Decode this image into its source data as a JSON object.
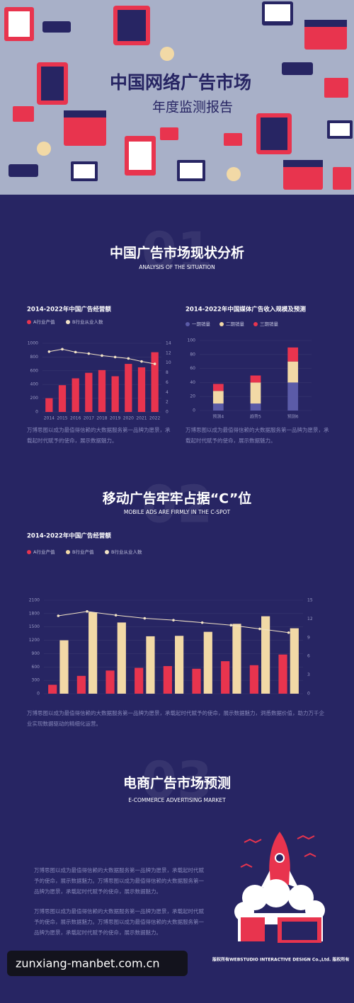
{
  "header": {
    "title": "中国网络广告市场",
    "subtitle": "年度监测报告"
  },
  "sections": [
    {
      "number": "01",
      "title": "中国广告市场现状分析",
      "subtitle": "ANALYSIS OF THE SITUATION"
    },
    {
      "number": "02",
      "title": "移动广告牢牢占据“C”位",
      "subtitle": "MOBILE ADS ARE FIRMLY IN THE C-SPOT"
    },
    {
      "number": "03",
      "title": "电商广告市场预测",
      "subtitle": "E-COMMERCE ADVERTISING MARKET"
    }
  ],
  "chart_data": [
    {
      "type": "bar",
      "title": "2014-2022年中国广告经营额",
      "categories": [
        "2014",
        "2015",
        "2016",
        "2017",
        "2018",
        "2019",
        "2020",
        "2021",
        "2022"
      ],
      "series": [
        {
          "name": "A行业产值",
          "color": "#e8344e",
          "values": [
            200,
            390,
            490,
            570,
            610,
            520,
            700,
            650,
            870
          ]
        },
        {
          "name": "B行业从业人数",
          "color": "#f2e3c6",
          "type": "line",
          "axis": "y2",
          "values": [
            12.3,
            12.8,
            12.2,
            11.9,
            11.5,
            11.2,
            10.9,
            10.3,
            9.8
          ]
        }
      ],
      "ylim": [
        0,
        1000
      ],
      "yticks": [
        0,
        200,
        400,
        600,
        800,
        1000
      ],
      "y2lim": [
        0,
        14
      ],
      "y2ticks": [
        0,
        2,
        4,
        6,
        8,
        10,
        12,
        14
      ],
      "grid": true,
      "caption": "万博思图以成为最值得信赖的大数据服务第一品牌为愿景，承载起时代赋予的使命，展示数据魅力。"
    },
    {
      "type": "bar",
      "stacked": true,
      "title": "2014-2022年中国媒体广告收入规模及预测",
      "categories": [
        "预测4",
        "趋势5",
        "预测6"
      ],
      "series": [
        {
          "name": "一期销量",
          "color": "#5b5ba8",
          "values": [
            10,
            10,
            40
          ]
        },
        {
          "name": "二期销量",
          "color": "#f2d9a6",
          "values": [
            18,
            30,
            30
          ]
        },
        {
          "name": "三期销量",
          "color": "#e8344e",
          "values": [
            10,
            10,
            20
          ]
        }
      ],
      "ylim": [
        0,
        100
      ],
      "yticks": [
        0,
        20,
        40,
        60,
        80,
        100
      ],
      "grid": true,
      "caption": "万博思图以成为最值得信赖的大数据服务第一品牌为愿景，承载起时代赋予的使命，展示数据魅力。"
    },
    {
      "type": "bar",
      "title": "2014-2022年中国广告经营额",
      "categories": [
        null,
        null,
        null,
        null,
        null,
        null,
        null,
        null,
        null
      ],
      "series": [
        {
          "name": "A行业产值",
          "color": "#e8344e",
          "values": [
            200,
            400,
            520,
            580,
            620,
            560,
            730,
            640,
            880
          ]
        },
        {
          "name": "B行业产值",
          "color": "#f2d9a6",
          "values": [
            1200,
            1830,
            1600,
            1290,
            1300,
            1390,
            1570,
            1740,
            1470
          ]
        },
        {
          "name": "B行业从业人数",
          "color": "#f2e3c6",
          "type": "line",
          "axis": "y2",
          "values": [
            12.5,
            13.2,
            12.6,
            12.1,
            11.8,
            11.4,
            11.0,
            10.4,
            9.8
          ]
        }
      ],
      "ylim": [
        0,
        2100
      ],
      "yticks": [
        0,
        300,
        600,
        900,
        1200,
        1500,
        1800,
        2100
      ],
      "y2lim": [
        0,
        15
      ],
      "y2ticks": [
        0,
        3,
        6,
        9,
        12,
        15
      ],
      "grid": true,
      "caption": "万博思图以成为最值得信赖的大数据服务第一品牌为愿景，承载起时代赋予的使命，展示数据魅力，洞悉数据价值，助力万千企业实现数据驱动的精细化运营。"
    }
  ],
  "ecommerce_text": [
    "万博思图以成为最值得信赖的大数据服务第一品牌为愿景，承载起时代赋予的使命，展示数据魅力。万博思图以成为最值得信赖的大数据服务第一品牌为愿景，承载起时代赋予的使命，展示数据魅力。",
    "万博思图以成为最值得信赖的大数据服务第一品牌为愿景，承载起时代赋予的使命，展示数据魅力。万博思图以成为最值得信赖的大数据服务第一品牌为愿景，承载起时代赋予的使命，展示数据魅力。"
  ],
  "footer": {
    "watermark": "zunxiang-manbet.com.cn",
    "copyright": "版权所有WEBSTUDIO INTERACTIVE DESIGN Co.,Ltd. 版权所有"
  }
}
